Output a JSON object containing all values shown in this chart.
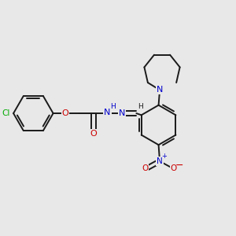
{
  "bg_color": "#e8e8e8",
  "bond_color": "#1a1a1a",
  "N_color": "#0000cc",
  "O_color": "#cc0000",
  "Cl_color": "#00aa00",
  "lw": 1.4,
  "figsize": [
    3.0,
    3.0
  ],
  "dpi": 100,
  "xlim": [
    0,
    10
  ],
  "ylim": [
    0,
    10
  ]
}
